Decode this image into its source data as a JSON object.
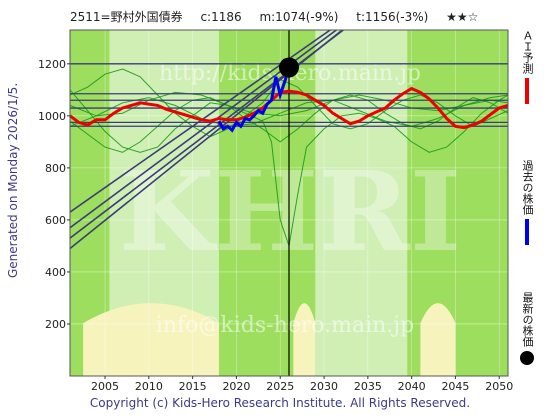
{
  "header": {
    "code_name": "2511=野村外国債券",
    "current": "c:1186",
    "mid": "m:1074(-9%)",
    "target": "t:1156(-3%)",
    "stars": "★★☆"
  },
  "side_note": "Generated on Monday 2026/1/5.",
  "legend": {
    "ai_forecast": "ＡＩ予測",
    "past_price": "過去の株価",
    "latest_price": "最新の株価"
  },
  "watermarks": [
    "http://kids-hero.main.jp",
    "KHRI",
    "info@kids-hero.main.jp"
  ],
  "footer": "Copyright (c) Kids-Hero Research Institute. All Rights Reserved.",
  "colors": {
    "background_green": "#9dde5e",
    "band_light_green": "#d9f2c4",
    "band_yellow": "#f7f3bd",
    "forecast_red": "#ee0000",
    "past_blue": "#0000ee",
    "trend_lines": "#3c3c78",
    "green_curves": "#1a9a1a"
  },
  "chart_data": {
    "type": "line",
    "xlim": [
      2001,
      2051
    ],
    "ylim": [
      0,
      1330
    ],
    "x_ticks": [
      2005,
      2010,
      2015,
      2020,
      2025,
      2030,
      2035,
      2040,
      2045,
      2050
    ],
    "y_ticks": [
      200,
      400,
      600,
      800,
      1000,
      1200
    ],
    "latest_point": {
      "x": 2026.0,
      "y": 1186
    },
    "current_marker_x": 2026.0,
    "horizontal_levels": [
      1200,
      1085,
      1060,
      1030,
      975,
      960
    ],
    "trend_lines": [
      {
        "x": [
          2001,
          2038
        ],
        "y": [
          490,
          1490
        ]
      },
      {
        "x": [
          2001,
          2040
        ],
        "y": [
          530,
          1530
        ]
      },
      {
        "x": [
          2001,
          2041
        ],
        "y": [
          570,
          1570
        ]
      },
      {
        "x": [
          2001,
          2043
        ],
        "y": [
          630,
          1620
        ]
      }
    ],
    "series": [
      {
        "name": "ＡＩ予測",
        "x": [
          2001,
          2002,
          2003,
          2004,
          2005,
          2006,
          2007,
          2008,
          2009,
          2010,
          2011,
          2012,
          2013,
          2014,
          2015,
          2016,
          2017,
          2018,
          2019,
          2020,
          2021,
          2022,
          2023,
          2024,
          2025,
          2026,
          2027,
          2028,
          2029,
          2030,
          2031,
          2032,
          2033,
          2034,
          2035,
          2036,
          2037,
          2038,
          2039,
          2040,
          2041,
          2042,
          2043,
          2044,
          2045,
          2046,
          2047,
          2048,
          2049,
          2050,
          2051
        ],
        "y": [
          1000,
          975,
          965,
          985,
          985,
          1010,
          1030,
          1040,
          1050,
          1045,
          1040,
          1025,
          1015,
          1005,
          995,
          985,
          980,
          990,
          985,
          985,
          995,
          1010,
          1030,
          1060,
          1090,
          1095,
          1090,
          1080,
          1060,
          1040,
          1010,
          990,
          970,
          980,
          1000,
          1015,
          1030,
          1060,
          1085,
          1105,
          1090,
          1065,
          1030,
          990,
          960,
          955,
          965,
          980,
          1005,
          1030,
          1040
        ]
      },
      {
        "name": "過去の株価",
        "x": [
          2018,
          2018.5,
          2019,
          2019.5,
          2020,
          2020.5,
          2021,
          2021.5,
          2022,
          2022.5,
          2023,
          2023.5,
          2024,
          2024.5,
          2025,
          2025.5,
          2026
        ],
        "y": [
          980,
          950,
          960,
          945,
          975,
          960,
          990,
          985,
          1000,
          1020,
          1010,
          1045,
          1060,
          1150,
          1080,
          1130,
          1186
        ]
      },
      {
        "name": "green_a",
        "x": [
          2001,
          2003,
          2005,
          2007,
          2009,
          2011,
          2013,
          2015,
          2017,
          2019,
          2021,
          2023,
          2025,
          2027,
          2029,
          2031,
          2033,
          2035,
          2037,
          2039,
          2041,
          2043,
          2045,
          2047,
          2049,
          2051
        ],
        "y": [
          1080,
          1110,
          1160,
          1180,
          1150,
          1080,
          1010,
          960,
          920,
          950,
          1000,
          1050,
          1140,
          1110,
          1040,
          970,
          950,
          970,
          1020,
          1060,
          1080,
          1050,
          1000,
          960,
          990,
          1020
        ]
      },
      {
        "name": "green_b",
        "x": [
          2001,
          2003,
          2005,
          2007,
          2009,
          2011,
          2013,
          2015,
          2017,
          2019,
          2021,
          2023,
          2025,
          2027,
          2029,
          2031,
          2033,
          2035,
          2037,
          2039,
          2041,
          2043,
          2045,
          2047,
          2049,
          2051
        ],
        "y": [
          980,
          930,
          880,
          860,
          900,
          960,
          1020,
          1060,
          1070,
          1040,
          990,
          950,
          900,
          950,
          1010,
          1060,
          1080,
          1060,
          1010,
          970,
          950,
          980,
          1030,
          1070,
          1050,
          1010
        ]
      },
      {
        "name": "green_c",
        "x": [
          2001,
          2003,
          2005,
          2007,
          2009,
          2011,
          2013,
          2015,
          2017,
          2019,
          2021,
          2023,
          2024,
          2025,
          2026,
          2027,
          2028,
          2030,
          2032,
          2034,
          2036,
          2038,
          2040,
          2042,
          2044,
          2046,
          2048,
          2050,
          2051
        ],
        "y": [
          1100,
          1020,
          940,
          880,
          860,
          880,
          950,
          1000,
          1050,
          1040,
          1010,
          980,
          900,
          600,
          500,
          700,
          880,
          950,
          1000,
          1010,
          990,
          960,
          900,
          860,
          880,
          940,
          1010,
          1060,
          1080
        ]
      },
      {
        "name": "green_d",
        "x": [
          2001,
          2004,
          2007,
          2010,
          2013,
          2016,
          2019,
          2022,
          2025,
          2028,
          2031,
          2034,
          2037,
          2040,
          2043,
          2046,
          2049,
          2051
        ],
        "y": [
          1040,
          1000,
          1010,
          1060,
          1090,
          1080,
          1040,
          1010,
          1000,
          1020,
          1060,
          1080,
          1060,
          1030,
          1020,
          1040,
          1070,
          1080
        ]
      },
      {
        "name": "green_e",
        "x": [
          2001,
          2004,
          2007,
          2010,
          2013,
          2016,
          2019,
          2022,
          2025,
          2028,
          2031,
          2034,
          2037,
          2040,
          2043,
          2046,
          2049,
          2051
        ],
        "y": [
          960,
          1000,
          1050,
          1070,
          1040,
          990,
          960,
          970,
          1010,
          1050,
          1060,
          1020,
          980,
          960,
          990,
          1040,
          1060,
          1050
        ]
      }
    ],
    "bands": {
      "light_green_x": [
        [
          2005.5,
          2018.0
        ],
        [
          2029.0,
          2039.5
        ]
      ],
      "yellow_x": [
        [
          2002.5,
          2018.0
        ],
        [
          2026.5,
          2029.0
        ],
        [
          2041.0,
          2045.0
        ]
      ]
    }
  }
}
